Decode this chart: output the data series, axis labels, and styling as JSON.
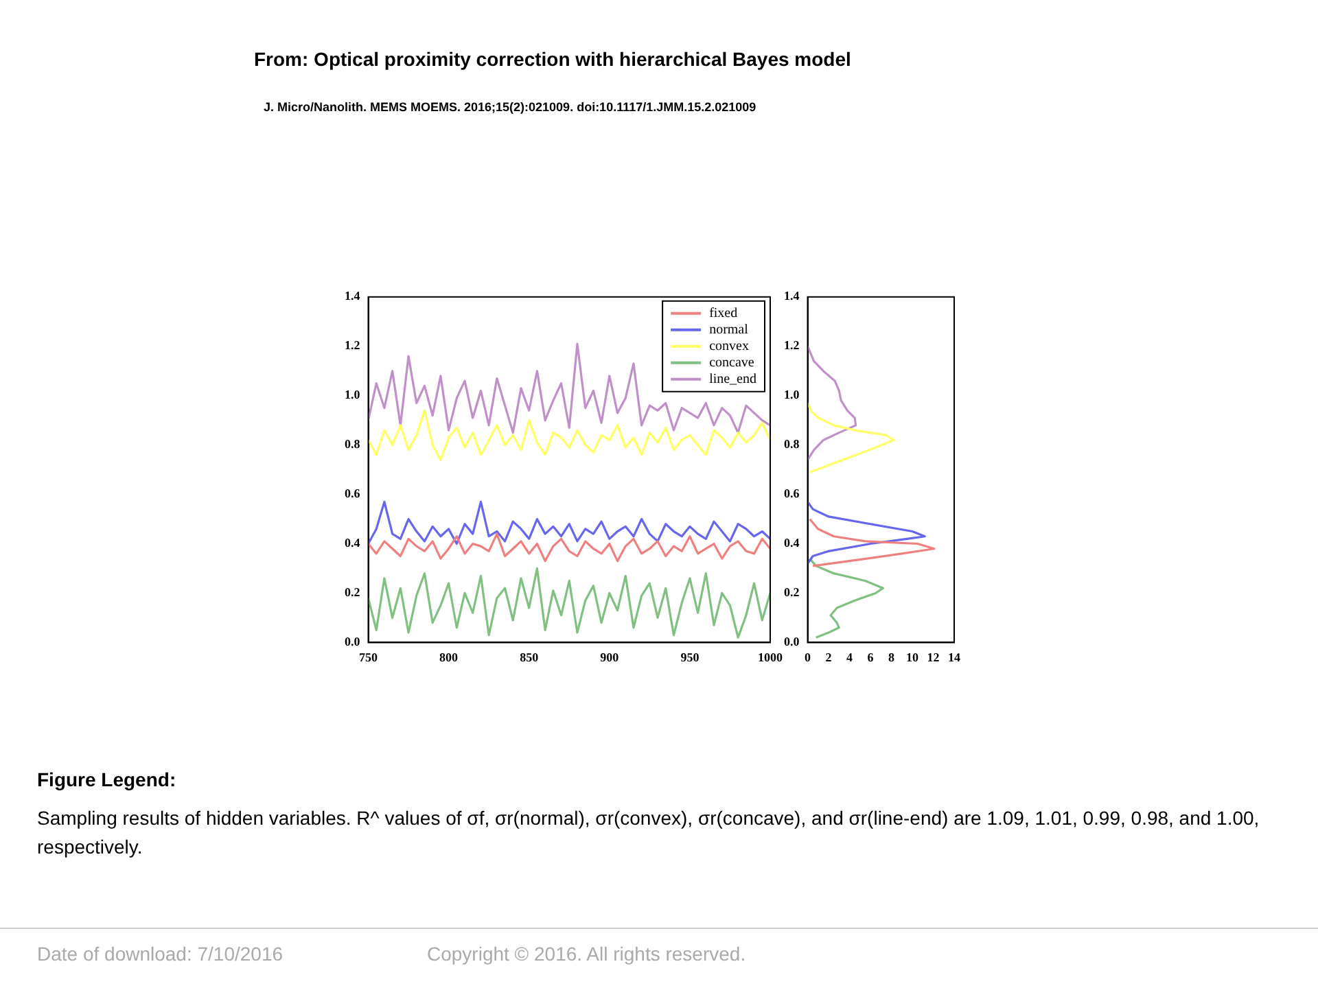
{
  "chart_data": [
    {
      "type": "line",
      "title": "From: Optical proximity correction with hierarchical Bayes model",
      "subtitle": "J. Micro/Nanolith. MEMS MOEMS. 2016;15(2):021009. doi:10.1117/1.JMM.15.2.021009",
      "annotations": [
        "Figure Legend:",
        "Sampling results of hidden variables. R^ values of σf, σr(normal), σr(convex), σr(concave), and σr(line-end) are 1.09, 1.01, 0.99, 0.98, and 1.00, respectively.",
        "Date of download:  7/10/2016",
        "Copyright © 2016. All rights reserved."
      ],
      "x": [
        750,
        755,
        760,
        765,
        770,
        775,
        780,
        785,
        790,
        795,
        800,
        805,
        810,
        815,
        820,
        825,
        830,
        835,
        840,
        845,
        850,
        855,
        860,
        865,
        870,
        875,
        880,
        885,
        890,
        895,
        900,
        905,
        910,
        915,
        920,
        925,
        930,
        935,
        940,
        945,
        950,
        955,
        960,
        965,
        970,
        975,
        980,
        985,
        990,
        995,
        1000
      ],
      "series": [
        {
          "name": "fixed",
          "color": "#f08080",
          "values": [
            0.4,
            0.36,
            0.41,
            0.38,
            0.35,
            0.42,
            0.39,
            0.37,
            0.41,
            0.34,
            0.38,
            0.43,
            0.36,
            0.4,
            0.39,
            0.37,
            0.44,
            0.35,
            0.38,
            0.41,
            0.36,
            0.4,
            0.33,
            0.39,
            0.42,
            0.37,
            0.35,
            0.41,
            0.38,
            0.36,
            0.4,
            0.33,
            0.39,
            0.42,
            0.36,
            0.38,
            0.41,
            0.35,
            0.39,
            0.37,
            0.43,
            0.36,
            0.38,
            0.4,
            0.34,
            0.39,
            0.41,
            0.37,
            0.36,
            0.42,
            0.38
          ]
        },
        {
          "name": "normal",
          "color": "#6666ee",
          "values": [
            0.4,
            0.46,
            0.57,
            0.44,
            0.42,
            0.5,
            0.45,
            0.41,
            0.47,
            0.43,
            0.46,
            0.4,
            0.48,
            0.44,
            0.57,
            0.43,
            0.45,
            0.41,
            0.49,
            0.46,
            0.42,
            0.5,
            0.44,
            0.47,
            0.43,
            0.48,
            0.41,
            0.46,
            0.44,
            0.49,
            0.42,
            0.45,
            0.47,
            0.43,
            0.5,
            0.44,
            0.41,
            0.48,
            0.45,
            0.43,
            0.47,
            0.44,
            0.42,
            0.49,
            0.45,
            0.41,
            0.48,
            0.46,
            0.43,
            0.45,
            0.42
          ]
        },
        {
          "name": "convex",
          "color": "#ffff66",
          "values": [
            0.82,
            0.76,
            0.86,
            0.8,
            0.88,
            0.78,
            0.84,
            0.94,
            0.8,
            0.74,
            0.83,
            0.87,
            0.79,
            0.85,
            0.76,
            0.82,
            0.88,
            0.8,
            0.84,
            0.78,
            0.9,
            0.81,
            0.76,
            0.85,
            0.83,
            0.79,
            0.86,
            0.8,
            0.77,
            0.84,
            0.82,
            0.88,
            0.79,
            0.83,
            0.76,
            0.85,
            0.81,
            0.87,
            0.78,
            0.82,
            0.84,
            0.8,
            0.76,
            0.86,
            0.83,
            0.79,
            0.85,
            0.81,
            0.84,
            0.89,
            0.82
          ]
        },
        {
          "name": "concave",
          "color": "#80c080",
          "values": [
            0.18,
            0.05,
            0.26,
            0.1,
            0.22,
            0.04,
            0.19,
            0.28,
            0.08,
            0.15,
            0.24,
            0.06,
            0.2,
            0.12,
            0.27,
            0.03,
            0.18,
            0.22,
            0.09,
            0.26,
            0.14,
            0.3,
            0.05,
            0.21,
            0.11,
            0.25,
            0.04,
            0.17,
            0.23,
            0.08,
            0.2,
            0.13,
            0.27,
            0.06,
            0.19,
            0.24,
            0.1,
            0.22,
            0.03,
            0.16,
            0.26,
            0.12,
            0.28,
            0.07,
            0.2,
            0.15,
            0.02,
            0.11,
            0.24,
            0.09,
            0.2
          ]
        },
        {
          "name": "line_end",
          "color": "#c090c8",
          "values": [
            0.9,
            1.05,
            0.95,
            1.1,
            0.88,
            1.16,
            0.97,
            1.04,
            0.92,
            1.08,
            0.86,
            0.99,
            1.06,
            0.91,
            1.02,
            0.88,
            1.07,
            0.96,
            0.85,
            1.03,
            0.94,
            1.1,
            0.9,
            0.98,
            1.05,
            0.87,
            1.21,
            0.95,
            1.02,
            0.89,
            1.08,
            0.93,
            0.99,
            1.13,
            0.88,
            0.96,
            0.94,
            0.97,
            0.86,
            0.95,
            0.93,
            0.91,
            0.97,
            0.88,
            0.95,
            0.92,
            0.85,
            0.96,
            0.93,
            0.9,
            0.88
          ]
        }
      ],
      "xlim": [
        750,
        1000
      ],
      "xticks": [
        750,
        800,
        850,
        900,
        950,
        1000
      ],
      "ylim": [
        0,
        1.4
      ],
      "yticks": [
        {
          "value": 0,
          "label": "0.0"
        },
        {
          "value": 0.2,
          "label": "0.2"
        },
        {
          "value": 0.4,
          "label": "0.4"
        },
        {
          "value": 0.6,
          "label": "0.6"
        },
        {
          "value": 0.8,
          "label": "0.8"
        },
        {
          "value": 1,
          "label": "1.0"
        },
        {
          "value": 1.2,
          "label": "1.2"
        },
        1.4
      ],
      "legend": "top right"
    },
    {
      "type": "line",
      "series": [
        {
          "color": "#f08080",
          "x": [
            0.5,
            4,
            9,
            12.1,
            10.5,
            5.5,
            2.5,
            1,
            0.2
          ],
          "values": [
            0.31,
            0.33,
            0.36,
            0.38,
            0.4,
            0.41,
            0.43,
            0.46,
            0.5
          ]
        },
        {
          "color": "#6666ee",
          "x": [
            0,
            0.5,
            2,
            6,
            9.5,
            11.2,
            10,
            6,
            2,
            0.5,
            0
          ],
          "values": [
            0.32,
            0.35,
            0.37,
            0.4,
            0.42,
            0.43,
            0.45,
            0.48,
            0.51,
            0.54,
            0.57
          ]
        },
        {
          "color": "#ffff66",
          "x": [
            0.2,
            1.5,
            4,
            6.5,
            8.2,
            7.5,
            4.5,
            2.5,
            1,
            0.3,
            0
          ],
          "values": [
            0.69,
            0.71,
            0.75,
            0.79,
            0.82,
            0.84,
            0.86,
            0.88,
            0.91,
            0.94,
            0.97
          ]
        },
        {
          "color": "#80c080",
          "x": [
            0.8,
            2,
            3,
            2.8,
            2.2,
            2.8,
            4.5,
            6.5,
            7.2,
            5.5,
            2.5,
            0.8,
            0.2
          ],
          "values": [
            0.02,
            0.04,
            0.06,
            0.08,
            0.11,
            0.14,
            0.17,
            0.2,
            0.22,
            0.25,
            0.28,
            0.31,
            0.34
          ]
        },
        {
          "color": "#c090c8",
          "x": [
            0,
            0.6,
            1.5,
            3,
            4.6,
            4.5,
            3.8,
            3.2,
            3,
            2.6,
            1.5,
            0.6,
            0.2,
            0
          ],
          "values": [
            0.74,
            0.78,
            0.82,
            0.85,
            0.88,
            0.91,
            0.94,
            0.98,
            1.02,
            1.06,
            1.1,
            1.14,
            1.18,
            1.2
          ]
        }
      ],
      "xlim": [
        0,
        14
      ],
      "xticks": [
        0,
        2,
        4,
        6,
        8,
        10,
        12,
        14
      ],
      "ylim": [
        0,
        1.4
      ],
      "yticks": [
        {
          "value": 0,
          "label": "0.0"
        },
        {
          "value": 0.2,
          "label": "0.2"
        },
        {
          "value": 0.4,
          "label": "0.4"
        },
        {
          "value": 0.6,
          "label": "0.6"
        },
        {
          "value": 0.8,
          "label": "0.8"
        },
        {
          "value": 1,
          "label": "1.0"
        },
        {
          "value": 1.2,
          "label": "1.2"
        },
        1.4
      ]
    }
  ]
}
